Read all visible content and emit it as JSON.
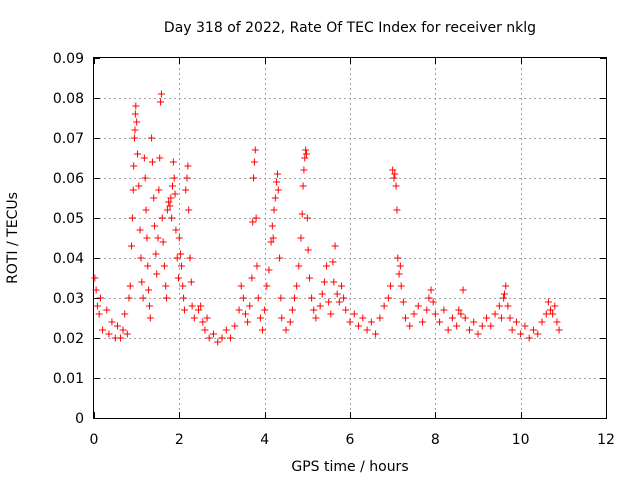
{
  "chart_data": {
    "type": "scatter",
    "title": "Day 318 of 2022, Rate Of TEC Index for receiver nklg",
    "xlabel": "GPS time / hours",
    "ylabel": "ROTI / TECUs",
    "xlim": [
      0,
      12
    ],
    "ylim": [
      0,
      0.09
    ],
    "xticks": [
      0,
      2,
      4,
      6,
      8,
      10,
      12
    ],
    "xtick_labels": [
      "0",
      "2",
      "4",
      "6",
      "8",
      "10",
      "12"
    ],
    "yticks": [
      0,
      0.01,
      0.02,
      0.03,
      0.04,
      0.05,
      0.06,
      0.07,
      0.08,
      0.09
    ],
    "ytick_labels": [
      "0",
      "0.01",
      "0.02",
      "0.03",
      "0.04",
      "0.05",
      "0.06",
      "0.07",
      "0.08",
      "0.09"
    ],
    "grid": true,
    "marker": "+",
    "color": "#ff0000",
    "series": [
      {
        "name": "ROTI",
        "points": [
          [
            0.02,
            0.035
          ],
          [
            0.05,
            0.032
          ],
          [
            0.08,
            0.028
          ],
          [
            0.12,
            0.026
          ],
          [
            0.15,
            0.03
          ],
          [
            0.2,
            0.022
          ],
          [
            0.3,
            0.027
          ],
          [
            0.35,
            0.021
          ],
          [
            0.42,
            0.024
          ],
          [
            0.5,
            0.02
          ],
          [
            0.55,
            0.023
          ],
          [
            0.62,
            0.02
          ],
          [
            0.68,
            0.022
          ],
          [
            0.72,
            0.026
          ],
          [
            0.78,
            0.021
          ],
          [
            0.82,
            0.03
          ],
          [
            0.85,
            0.033
          ],
          [
            0.88,
            0.043
          ],
          [
            0.9,
            0.05
          ],
          [
            0.92,
            0.057
          ],
          [
            0.93,
            0.063
          ],
          [
            0.95,
            0.07
          ],
          [
            0.96,
            0.072
          ],
          [
            0.97,
            0.076
          ],
          [
            0.98,
            0.078
          ],
          [
            1.0,
            0.074
          ],
          [
            1.02,
            0.066
          ],
          [
            1.05,
            0.058
          ],
          [
            1.08,
            0.047
          ],
          [
            1.1,
            0.04
          ],
          [
            1.12,
            0.034
          ],
          [
            1.15,
            0.03
          ],
          [
            1.18,
            0.065
          ],
          [
            1.2,
            0.06
          ],
          [
            1.22,
            0.052
          ],
          [
            1.24,
            0.045
          ],
          [
            1.26,
            0.038
          ],
          [
            1.28,
            0.032
          ],
          [
            1.3,
            0.028
          ],
          [
            1.32,
            0.025
          ],
          [
            1.35,
            0.07
          ],
          [
            1.37,
            0.064
          ],
          [
            1.4,
            0.055
          ],
          [
            1.42,
            0.048
          ],
          [
            1.45,
            0.041
          ],
          [
            1.47,
            0.036
          ],
          [
            1.5,
            0.045
          ],
          [
            1.52,
            0.057
          ],
          [
            1.54,
            0.065
          ],
          [
            1.56,
            0.079
          ],
          [
            1.58,
            0.081
          ],
          [
            1.6,
            0.05
          ],
          [
            1.62,
            0.044
          ],
          [
            1.65,
            0.038
          ],
          [
            1.68,
            0.033
          ],
          [
            1.7,
            0.03
          ],
          [
            1.72,
            0.052
          ],
          [
            1.75,
            0.054
          ],
          [
            1.78,
            0.053
          ],
          [
            1.8,
            0.055
          ],
          [
            1.82,
            0.05
          ],
          [
            1.84,
            0.058
          ],
          [
            1.86,
            0.064
          ],
          [
            1.88,
            0.06
          ],
          [
            1.9,
            0.056
          ],
          [
            1.92,
            0.047
          ],
          [
            1.95,
            0.04
          ],
          [
            1.98,
            0.035
          ],
          [
            2.0,
            0.045
          ],
          [
            2.03,
            0.041
          ],
          [
            2.05,
            0.038
          ],
          [
            2.08,
            0.033
          ],
          [
            2.1,
            0.03
          ],
          [
            2.12,
            0.027
          ],
          [
            2.15,
            0.057
          ],
          [
            2.18,
            0.06
          ],
          [
            2.2,
            0.063
          ],
          [
            2.22,
            0.052
          ],
          [
            2.25,
            0.04
          ],
          [
            2.28,
            0.034
          ],
          [
            2.3,
            0.028
          ],
          [
            2.35,
            0.025
          ],
          [
            2.45,
            0.027
          ],
          [
            2.5,
            0.028
          ],
          [
            2.55,
            0.024
          ],
          [
            2.6,
            0.022
          ],
          [
            2.65,
            0.025
          ],
          [
            2.7,
            0.02
          ],
          [
            2.8,
            0.021
          ],
          [
            2.9,
            0.019
          ],
          [
            3.0,
            0.02
          ],
          [
            3.1,
            0.022
          ],
          [
            3.2,
            0.02
          ],
          [
            3.3,
            0.023
          ],
          [
            3.4,
            0.027
          ],
          [
            3.45,
            0.033
          ],
          [
            3.5,
            0.03
          ],
          [
            3.55,
            0.026
          ],
          [
            3.6,
            0.024
          ],
          [
            3.65,
            0.028
          ],
          [
            3.7,
            0.035
          ],
          [
            3.72,
            0.049
          ],
          [
            3.74,
            0.06
          ],
          [
            3.76,
            0.064
          ],
          [
            3.78,
            0.067
          ],
          [
            3.8,
            0.05
          ],
          [
            3.82,
            0.038
          ],
          [
            3.85,
            0.03
          ],
          [
            3.9,
            0.025
          ],
          [
            3.95,
            0.022
          ],
          [
            4.0,
            0.027
          ],
          [
            4.05,
            0.033
          ],
          [
            4.1,
            0.037
          ],
          [
            4.15,
            0.044
          ],
          [
            4.18,
            0.048
          ],
          [
            4.2,
            0.045
          ],
          [
            4.22,
            0.052
          ],
          [
            4.25,
            0.055
          ],
          [
            4.28,
            0.059
          ],
          [
            4.3,
            0.061
          ],
          [
            4.32,
            0.057
          ],
          [
            4.35,
            0.04
          ],
          [
            4.38,
            0.03
          ],
          [
            4.4,
            0.025
          ],
          [
            4.5,
            0.022
          ],
          [
            4.6,
            0.024
          ],
          [
            4.65,
            0.027
          ],
          [
            4.7,
            0.03
          ],
          [
            4.75,
            0.033
          ],
          [
            4.8,
            0.038
          ],
          [
            4.85,
            0.045
          ],
          [
            4.88,
            0.051
          ],
          [
            4.9,
            0.058
          ],
          [
            4.92,
            0.062
          ],
          [
            4.94,
            0.065
          ],
          [
            4.96,
            0.067
          ],
          [
            4.98,
            0.066
          ],
          [
            5.0,
            0.05
          ],
          [
            5.02,
            0.042
          ],
          [
            5.05,
            0.035
          ],
          [
            5.1,
            0.03
          ],
          [
            5.15,
            0.027
          ],
          [
            5.2,
            0.025
          ],
          [
            5.3,
            0.028
          ],
          [
            5.35,
            0.031
          ],
          [
            5.4,
            0.034
          ],
          [
            5.45,
            0.038
          ],
          [
            5.5,
            0.029
          ],
          [
            5.55,
            0.026
          ],
          [
            5.6,
            0.039
          ],
          [
            5.62,
            0.034
          ],
          [
            5.65,
            0.043
          ],
          [
            5.7,
            0.031
          ],
          [
            5.75,
            0.029
          ],
          [
            5.8,
            0.033
          ],
          [
            5.85,
            0.03
          ],
          [
            5.9,
            0.027
          ],
          [
            6.0,
            0.024
          ],
          [
            6.1,
            0.026
          ],
          [
            6.2,
            0.023
          ],
          [
            6.3,
            0.025
          ],
          [
            6.4,
            0.022
          ],
          [
            6.5,
            0.024
          ],
          [
            6.6,
            0.021
          ],
          [
            6.7,
            0.025
          ],
          [
            6.8,
            0.028
          ],
          [
            6.9,
            0.03
          ],
          [
            6.95,
            0.033
          ],
          [
            7.0,
            0.062
          ],
          [
            7.03,
            0.06
          ],
          [
            7.05,
            0.061
          ],
          [
            7.08,
            0.058
          ],
          [
            7.1,
            0.052
          ],
          [
            7.12,
            0.04
          ],
          [
            7.15,
            0.036
          ],
          [
            7.18,
            0.038
          ],
          [
            7.2,
            0.033
          ],
          [
            7.25,
            0.029
          ],
          [
            7.3,
            0.025
          ],
          [
            7.4,
            0.023
          ],
          [
            7.5,
            0.026
          ],
          [
            7.6,
            0.028
          ],
          [
            7.7,
            0.024
          ],
          [
            7.8,
            0.027
          ],
          [
            7.85,
            0.03
          ],
          [
            7.9,
            0.032
          ],
          [
            7.95,
            0.029
          ],
          [
            8.0,
            0.026
          ],
          [
            8.1,
            0.024
          ],
          [
            8.2,
            0.027
          ],
          [
            8.3,
            0.022
          ],
          [
            8.4,
            0.025
          ],
          [
            8.5,
            0.023
          ],
          [
            8.55,
            0.027
          ],
          [
            8.6,
            0.026
          ],
          [
            8.65,
            0.032
          ],
          [
            8.7,
            0.025
          ],
          [
            8.8,
            0.022
          ],
          [
            8.9,
            0.024
          ],
          [
            9.0,
            0.021
          ],
          [
            9.1,
            0.023
          ],
          [
            9.2,
            0.025
          ],
          [
            9.3,
            0.023
          ],
          [
            9.4,
            0.026
          ],
          [
            9.5,
            0.028
          ],
          [
            9.55,
            0.025
          ],
          [
            9.6,
            0.03
          ],
          [
            9.62,
            0.031
          ],
          [
            9.65,
            0.033
          ],
          [
            9.7,
            0.028
          ],
          [
            9.75,
            0.025
          ],
          [
            9.8,
            0.022
          ],
          [
            9.9,
            0.024
          ],
          [
            10.0,
            0.021
          ],
          [
            10.1,
            0.023
          ],
          [
            10.2,
            0.02
          ],
          [
            10.3,
            0.022
          ],
          [
            10.4,
            0.021
          ],
          [
            10.5,
            0.024
          ],
          [
            10.6,
            0.026
          ],
          [
            10.65,
            0.029
          ],
          [
            10.7,
            0.027
          ],
          [
            10.75,
            0.026
          ],
          [
            10.8,
            0.028
          ],
          [
            10.85,
            0.024
          ],
          [
            10.9,
            0.022
          ]
        ]
      }
    ]
  }
}
